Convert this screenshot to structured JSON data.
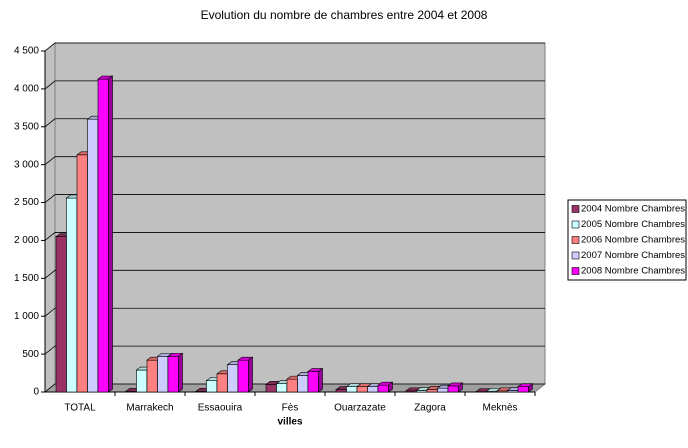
{
  "chart_data": {
    "type": "bar3d",
    "title": "Evolution du nombre de chambres entre 2004 et 2008",
    "x_label": "villes",
    "categories": [
      "TOTAL",
      "Marrakech",
      "Essaouira",
      "Fès",
      "Ouarzazate",
      "Zagora",
      "Meknès"
    ],
    "series": [
      {
        "name": "2004 Nombre Chambres",
        "color": "#993366",
        "values": [
          2050,
          10,
          10,
          100,
          30,
          15,
          5
        ]
      },
      {
        "name": "2005 Nombre Chambres",
        "color": "#ccffff",
        "values": [
          2560,
          290,
          150,
          110,
          70,
          20,
          10
        ]
      },
      {
        "name": "2006 Nombre Chambres",
        "color": "#ff8080",
        "values": [
          3130,
          420,
          240,
          170,
          70,
          35,
          15
        ]
      },
      {
        "name": "2007 Nombre Chambres",
        "color": "#ccccff",
        "values": [
          3600,
          470,
          360,
          220,
          70,
          50,
          20
        ]
      },
      {
        "name": "2008 Nombre Chambres",
        "color": "#ff00ff",
        "values": [
          4130,
          470,
          420,
          270,
          90,
          80,
          70
        ]
      }
    ],
    "ylim": [
      0,
      4500
    ],
    "yticks": [
      0,
      500,
      {
        "value": 1000,
        "label": "1 000"
      },
      {
        "value": 1500,
        "label": "1 500"
      },
      {
        "value": 2000,
        "label": "2 000"
      },
      {
        "value": 2500,
        "label": "2 500"
      },
      {
        "value": 3000,
        "label": "3 000"
      },
      {
        "value": 3500,
        "label": "3 500"
      },
      {
        "value": 4000,
        "label": "4 000"
      },
      {
        "value": 4500,
        "label": "4 500"
      }
    ],
    "grid": true,
    "legend": "right"
  }
}
